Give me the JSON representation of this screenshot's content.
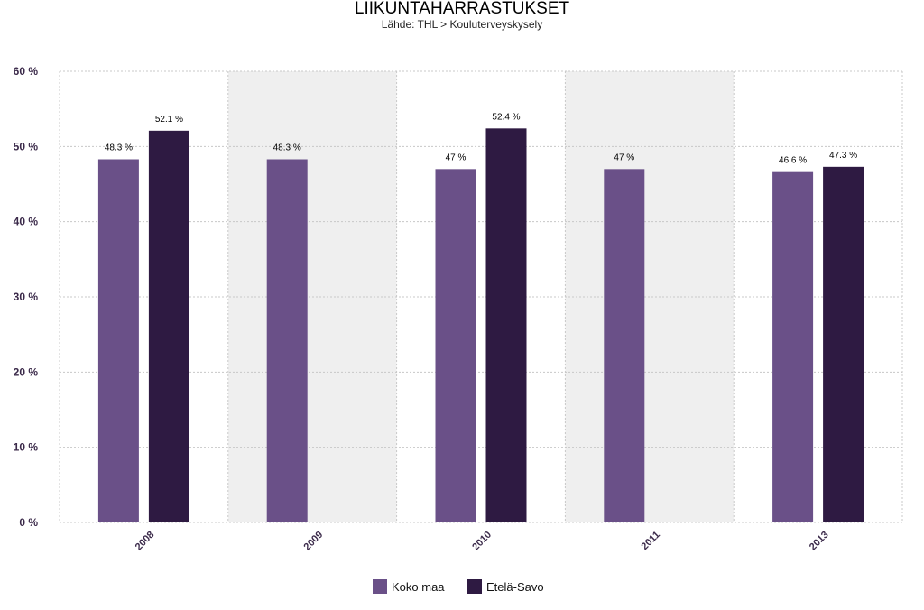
{
  "colors": {
    "band": "#efefef",
    "grid": "#c8c8c8",
    "axis_text": "#3b2a4a"
  },
  "chart_data": {
    "type": "bar",
    "title": "LIIKUNTAHARRASTUKSET",
    "subtitle": "Lähde: THL > Kouluterveyskysely",
    "xlabel": "",
    "ylabel": "",
    "categories": [
      "2008",
      "2009",
      "2010",
      "2011",
      "2013"
    ],
    "ylim": [
      0,
      60
    ],
    "yticks": [
      0,
      10,
      20,
      30,
      40,
      50,
      60
    ],
    "ytick_labels": [
      "0 %",
      "10 %",
      "20 %",
      "30 %",
      "40 %",
      "50 %",
      "60 %"
    ],
    "grid": true,
    "legend_position": "bottom",
    "series": [
      {
        "name": "Koko maa",
        "color": "#6a5088",
        "values": [
          48.3,
          48.3,
          47,
          47,
          46.6
        ],
        "labels": [
          "48.3 %",
          "48.3 %",
          "47 %",
          "47 %",
          "46.6 %"
        ]
      },
      {
        "name": "Etelä-Savo",
        "color": "#2e1a42",
        "values": [
          52.1,
          null,
          52.4,
          null,
          47.3
        ],
        "labels": [
          "52.1 %",
          null,
          "52.4 %",
          null,
          "47.3 %"
        ]
      }
    ]
  }
}
